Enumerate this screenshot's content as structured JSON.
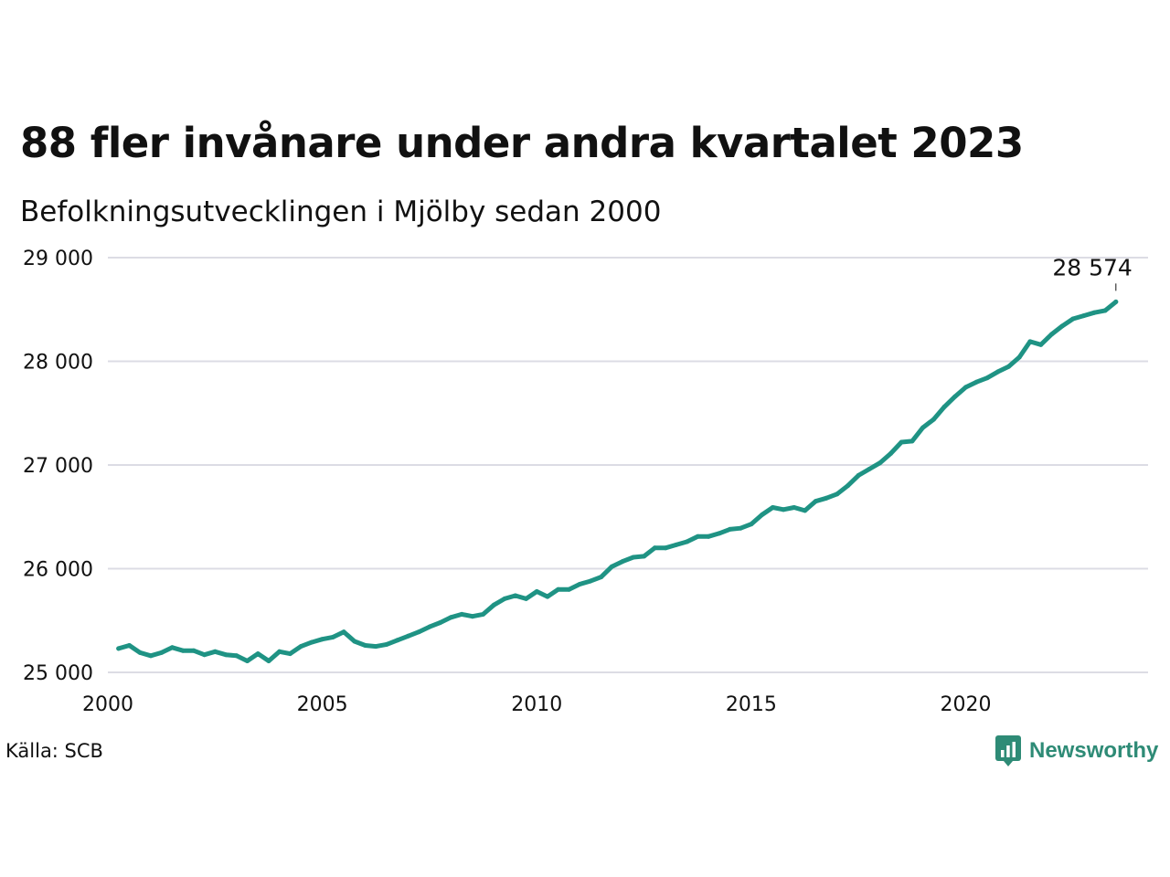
{
  "title": "88 fler invånare under andra kvartalet 2023",
  "subtitle": "Befolkningsutvecklingen i Mjölby sedan 2000",
  "source": "Källa: SCB",
  "brand": {
    "name": "Newsworthy",
    "icon": "newsworthy-logo-icon"
  },
  "colors": {
    "line": "#1f9384",
    "grid": "#dcdce4",
    "text": "#111111",
    "brand": "#2e8b76"
  },
  "chart_data": {
    "type": "line",
    "title": "88 fler invånare under andra kvartalet 2023",
    "subtitle": "Befolkningsutvecklingen i Mjölby sedan 2000",
    "xlabel": "",
    "ylabel": "",
    "xlim": [
      2000,
      2024.25
    ],
    "ylim": [
      25000,
      29000
    ],
    "x_ticks": [
      2000,
      2005,
      2010,
      2015,
      2020
    ],
    "x_tick_labels": [
      "2000",
      "2005",
      "2010",
      "2015",
      "2020"
    ],
    "y_ticks": [
      25000,
      26000,
      27000,
      28000,
      29000
    ],
    "y_tick_labels": [
      "25 000",
      "26 000",
      "27 000",
      "28 000",
      "29 000"
    ],
    "grid": "horizontal",
    "annotation": {
      "label": "28 574",
      "x": 2023.5,
      "y": 28574
    },
    "x": [
      2000.25,
      2000.5,
      2000.75,
      2001.0,
      2001.25,
      2001.5,
      2001.75,
      2002.0,
      2002.25,
      2002.5,
      2002.75,
      2003.0,
      2003.25,
      2003.5,
      2003.75,
      2004.0,
      2004.25,
      2004.5,
      2004.75,
      2005.0,
      2005.25,
      2005.5,
      2005.75,
      2006.0,
      2006.25,
      2006.5,
      2006.75,
      2007.0,
      2007.25,
      2007.5,
      2007.75,
      2008.0,
      2008.25,
      2008.5,
      2008.75,
      2009.0,
      2009.25,
      2009.5,
      2009.75,
      2010.0,
      2010.25,
      2010.5,
      2010.75,
      2011.0,
      2011.25,
      2011.5,
      2011.75,
      2012.0,
      2012.25,
      2012.5,
      2012.75,
      2013.0,
      2013.25,
      2013.5,
      2013.75,
      2014.0,
      2014.25,
      2014.5,
      2014.75,
      2015.0,
      2015.25,
      2015.5,
      2015.75,
      2016.0,
      2016.25,
      2016.5,
      2016.75,
      2017.0,
      2017.25,
      2017.5,
      2017.75,
      2018.0,
      2018.25,
      2018.5,
      2018.75,
      2019.0,
      2019.25,
      2019.5,
      2019.75,
      2020.0,
      2020.25,
      2020.5,
      2020.75,
      2021.0,
      2021.25,
      2021.5,
      2021.75,
      2022.0,
      2022.25,
      2022.5,
      2022.75,
      2023.0,
      2023.25,
      2023.5
    ],
    "series": [
      {
        "values": [
          25230,
          25260,
          25190,
          25160,
          25190,
          25240,
          25210,
          25210,
          25170,
          25200,
          25170,
          25160,
          25110,
          25180,
          25110,
          25200,
          25180,
          25250,
          25290,
          25320,
          25340,
          25390,
          25300,
          25260,
          25250,
          25270,
          25310,
          25350,
          25390,
          25440,
          25480,
          25530,
          25560,
          25540,
          25560,
          25650,
          25710,
          25740,
          25710,
          25780,
          25730,
          25800,
          25800,
          25850,
          25880,
          25920,
          26020,
          26070,
          26110,
          26120,
          26200,
          26200,
          26230,
          26260,
          26310,
          26310,
          26340,
          26380,
          26390,
          26430,
          26520,
          26590,
          26570,
          26590,
          26560,
          26650,
          26680,
          26720,
          26800,
          26900,
          26960,
          27020,
          27110,
          27220,
          27230,
          27360,
          27440,
          27560,
          27660,
          27750,
          27800,
          27840,
          27900,
          27950,
          28040,
          28190,
          28160,
          28260,
          28340,
          28410,
          28440,
          28470,
          28490,
          28574
        ]
      }
    ]
  }
}
